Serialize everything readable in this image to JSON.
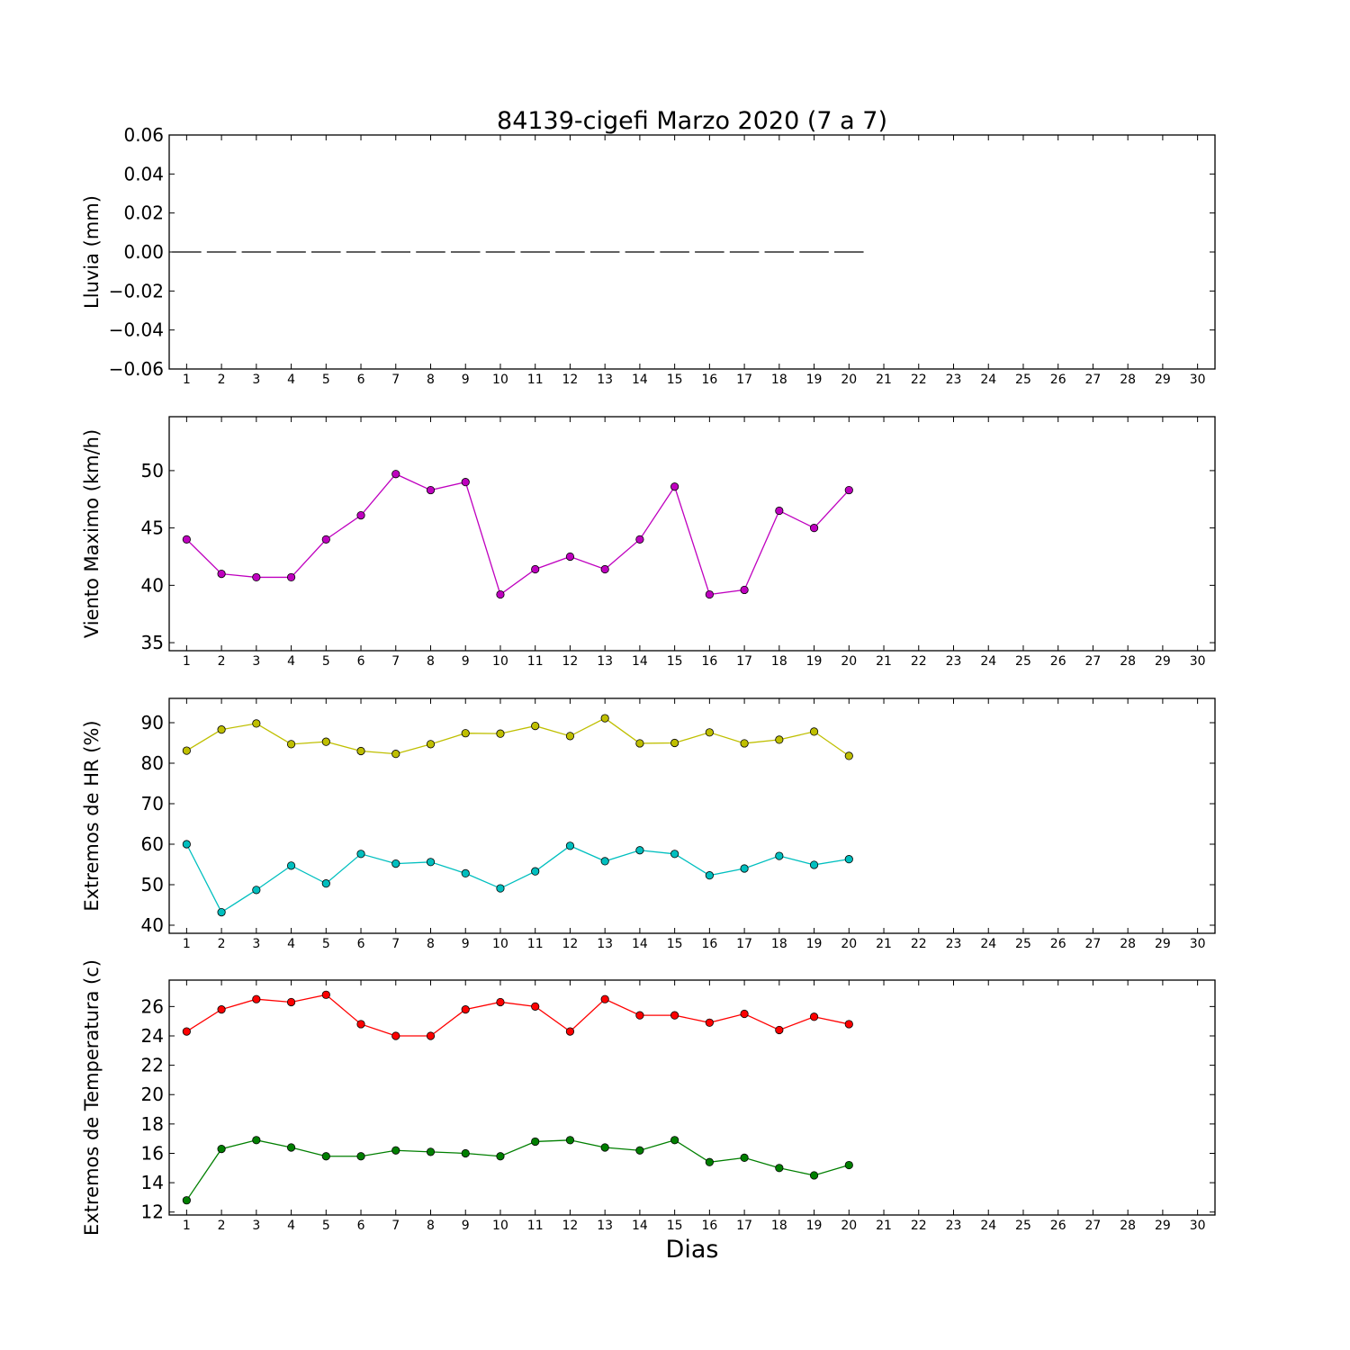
{
  "figure": {
    "title": "84139-cigefi Marzo 2020  (7 a 7)",
    "xlabel": "Dias"
  },
  "chart_data": [
    {
      "type": "line",
      "id": "lluvia",
      "title": "84139-cigefi Marzo 2020  (7 a 7)",
      "ylabel": "Lluvia (mm)",
      "xlabel": "",
      "ylim": [
        -0.06,
        0.06
      ],
      "yticks": [
        0.06,
        0.04,
        0.02,
        0.0,
        -0.02,
        -0.04,
        -0.06
      ],
      "ytick_labels": [
        "0.06",
        "0.04",
        "0.02",
        "0.00",
        "−0.02",
        "−0.04",
        "−0.06"
      ],
      "xlim": [
        0.5,
        30.5
      ],
      "xticks": [
        1,
        2,
        3,
        4,
        5,
        6,
        7,
        8,
        9,
        10,
        11,
        12,
        13,
        14,
        15,
        16,
        17,
        18,
        19,
        20,
        21,
        22,
        23,
        24,
        25,
        26,
        27,
        28,
        29,
        30
      ],
      "grid": false,
      "bars": {
        "style": "horizontal-dash",
        "color": "#000000",
        "x": [
          1,
          2,
          3,
          4,
          5,
          6,
          7,
          8,
          9,
          10,
          11,
          12,
          13,
          14,
          15,
          16,
          17,
          18,
          19,
          20
        ],
        "values": [
          0,
          0,
          0,
          0,
          0,
          0,
          0,
          0,
          0,
          0,
          0,
          0,
          0,
          0,
          0,
          0,
          0,
          0,
          0,
          0
        ]
      },
      "series": []
    },
    {
      "type": "line",
      "id": "viento",
      "ylabel": "Viento Maximo (km/h)",
      "xlabel": "",
      "ylim": [
        34.3,
        54.7
      ],
      "yticks": [
        50,
        45,
        40,
        35
      ],
      "ytick_labels": [
        "50",
        "45",
        "40",
        "35"
      ],
      "xlim": [
        0.5,
        30.5
      ],
      "xticks": [
        1,
        2,
        3,
        4,
        5,
        6,
        7,
        8,
        9,
        10,
        11,
        12,
        13,
        14,
        15,
        16,
        17,
        18,
        19,
        20,
        21,
        22,
        23,
        24,
        25,
        26,
        27,
        28,
        29,
        30
      ],
      "grid": false,
      "series": [
        {
          "color": "#bf00bf",
          "x": [
            1,
            2,
            3,
            4,
            5,
            6,
            7,
            8,
            9,
            10,
            11,
            12,
            13,
            14,
            15,
            16,
            17,
            18,
            19,
            20
          ],
          "values": [
            44.0,
            41.0,
            40.7,
            40.7,
            44.0,
            46.1,
            49.7,
            48.3,
            49.0,
            39.2,
            41.4,
            42.5,
            41.4,
            44.0,
            48.6,
            39.2,
            39.6,
            46.5,
            45.0,
            48.3
          ]
        }
      ]
    },
    {
      "type": "line",
      "id": "hr",
      "ylabel": "Extremos de HR (%)",
      "xlabel": "",
      "ylim": [
        38,
        96
      ],
      "yticks": [
        90,
        80,
        70,
        60,
        50,
        40
      ],
      "ytick_labels": [
        "90",
        "80",
        "70",
        "60",
        "50",
        "40"
      ],
      "xlim": [
        0.5,
        30.5
      ],
      "xticks": [
        1,
        2,
        3,
        4,
        5,
        6,
        7,
        8,
        9,
        10,
        11,
        12,
        13,
        14,
        15,
        16,
        17,
        18,
        19,
        20,
        21,
        22,
        23,
        24,
        25,
        26,
        27,
        28,
        29,
        30
      ],
      "grid": false,
      "series": [
        {
          "color": "#bfbf00",
          "x": [
            1,
            2,
            3,
            4,
            5,
            6,
            7,
            8,
            9,
            10,
            11,
            12,
            13,
            14,
            15,
            16,
            17,
            18,
            19,
            20
          ],
          "values": [
            83.1,
            88.3,
            89.8,
            84.7,
            85.3,
            83.0,
            82.3,
            84.7,
            87.4,
            87.3,
            89.2,
            86.7,
            91.1,
            84.9,
            85.0,
            87.6,
            84.9,
            85.8,
            87.8,
            81.8
          ]
        },
        {
          "color": "#00bfbf",
          "x": [
            1,
            2,
            3,
            4,
            5,
            6,
            7,
            8,
            9,
            10,
            11,
            12,
            13,
            14,
            15,
            16,
            17,
            18,
            19,
            20
          ],
          "values": [
            60.0,
            43.2,
            48.7,
            54.7,
            50.3,
            57.6,
            55.2,
            55.6,
            52.8,
            49.1,
            53.3,
            59.6,
            55.8,
            58.5,
            57.6,
            52.3,
            54.0,
            57.1,
            54.9,
            56.3
          ]
        }
      ]
    },
    {
      "type": "line",
      "id": "temp",
      "ylabel": "Extremos de Temperatura (c)",
      "xlabel": "Dias",
      "ylim": [
        11.8,
        27.8
      ],
      "yticks": [
        26,
        24,
        22,
        20,
        18,
        16,
        14,
        12
      ],
      "ytick_labels": [
        "26",
        "24",
        "22",
        "20",
        "18",
        "16",
        "14",
        "12"
      ],
      "xlim": [
        0.5,
        30.5
      ],
      "xticks": [
        1,
        2,
        3,
        4,
        5,
        6,
        7,
        8,
        9,
        10,
        11,
        12,
        13,
        14,
        15,
        16,
        17,
        18,
        19,
        20,
        21,
        22,
        23,
        24,
        25,
        26,
        27,
        28,
        29,
        30
      ],
      "grid": false,
      "series": [
        {
          "color": "#ff0000",
          "x": [
            1,
            2,
            3,
            4,
            5,
            6,
            7,
            8,
            9,
            10,
            11,
            12,
            13,
            14,
            15,
            16,
            17,
            18,
            19,
            20
          ],
          "values": [
            24.3,
            25.8,
            26.5,
            26.3,
            26.8,
            24.8,
            24.0,
            24.0,
            25.8,
            26.3,
            26.0,
            24.3,
            26.5,
            25.4,
            25.4,
            24.9,
            25.5,
            24.4,
            25.3,
            24.8
          ]
        },
        {
          "color": "#007f00",
          "x": [
            1,
            2,
            3,
            4,
            5,
            6,
            7,
            8,
            9,
            10,
            11,
            12,
            13,
            14,
            15,
            16,
            17,
            18,
            19,
            20
          ],
          "values": [
            12.8,
            16.3,
            16.9,
            16.4,
            15.8,
            15.8,
            16.2,
            16.1,
            16.0,
            15.8,
            16.8,
            16.9,
            16.4,
            16.2,
            16.9,
            15.4,
            15.7,
            15.0,
            14.5,
            15.2
          ]
        }
      ]
    }
  ]
}
